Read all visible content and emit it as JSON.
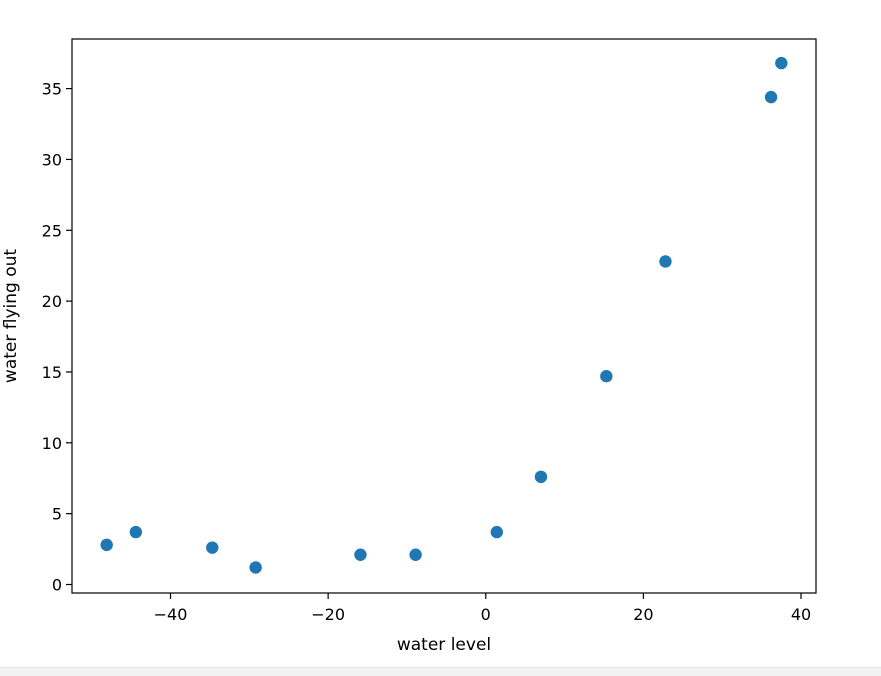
{
  "chart_data": {
    "type": "scatter",
    "title": "",
    "xlabel": "water level",
    "ylabel": "water flying out",
    "xlim": [
      -52.5,
      41.9
    ],
    "ylim": [
      -0.6,
      38.5
    ],
    "xticks": [
      -40,
      -20,
      0,
      20,
      40
    ],
    "xtick_labels": [
      "−40",
      "−20",
      "0",
      "20",
      "40"
    ],
    "yticks": [
      0,
      5,
      10,
      15,
      20,
      25,
      30,
      35
    ],
    "ytick_labels": [
      "0",
      "5",
      "10",
      "15",
      "20",
      "25",
      "30",
      "35"
    ],
    "grid": false,
    "marker_color": "#1f77b4",
    "points": [
      {
        "x": -48.1,
        "y": 2.8
      },
      {
        "x": -44.4,
        "y": 3.7
      },
      {
        "x": -34.7,
        "y": 2.6
      },
      {
        "x": -29.2,
        "y": 1.2
      },
      {
        "x": -15.9,
        "y": 2.1
      },
      {
        "x": -8.9,
        "y": 2.1
      },
      {
        "x": 1.4,
        "y": 3.7
      },
      {
        "x": 7.0,
        "y": 7.6
      },
      {
        "x": 15.3,
        "y": 14.7
      },
      {
        "x": 22.8,
        "y": 22.8
      },
      {
        "x": 36.2,
        "y": 34.4
      },
      {
        "x": 37.5,
        "y": 36.8
      }
    ]
  }
}
